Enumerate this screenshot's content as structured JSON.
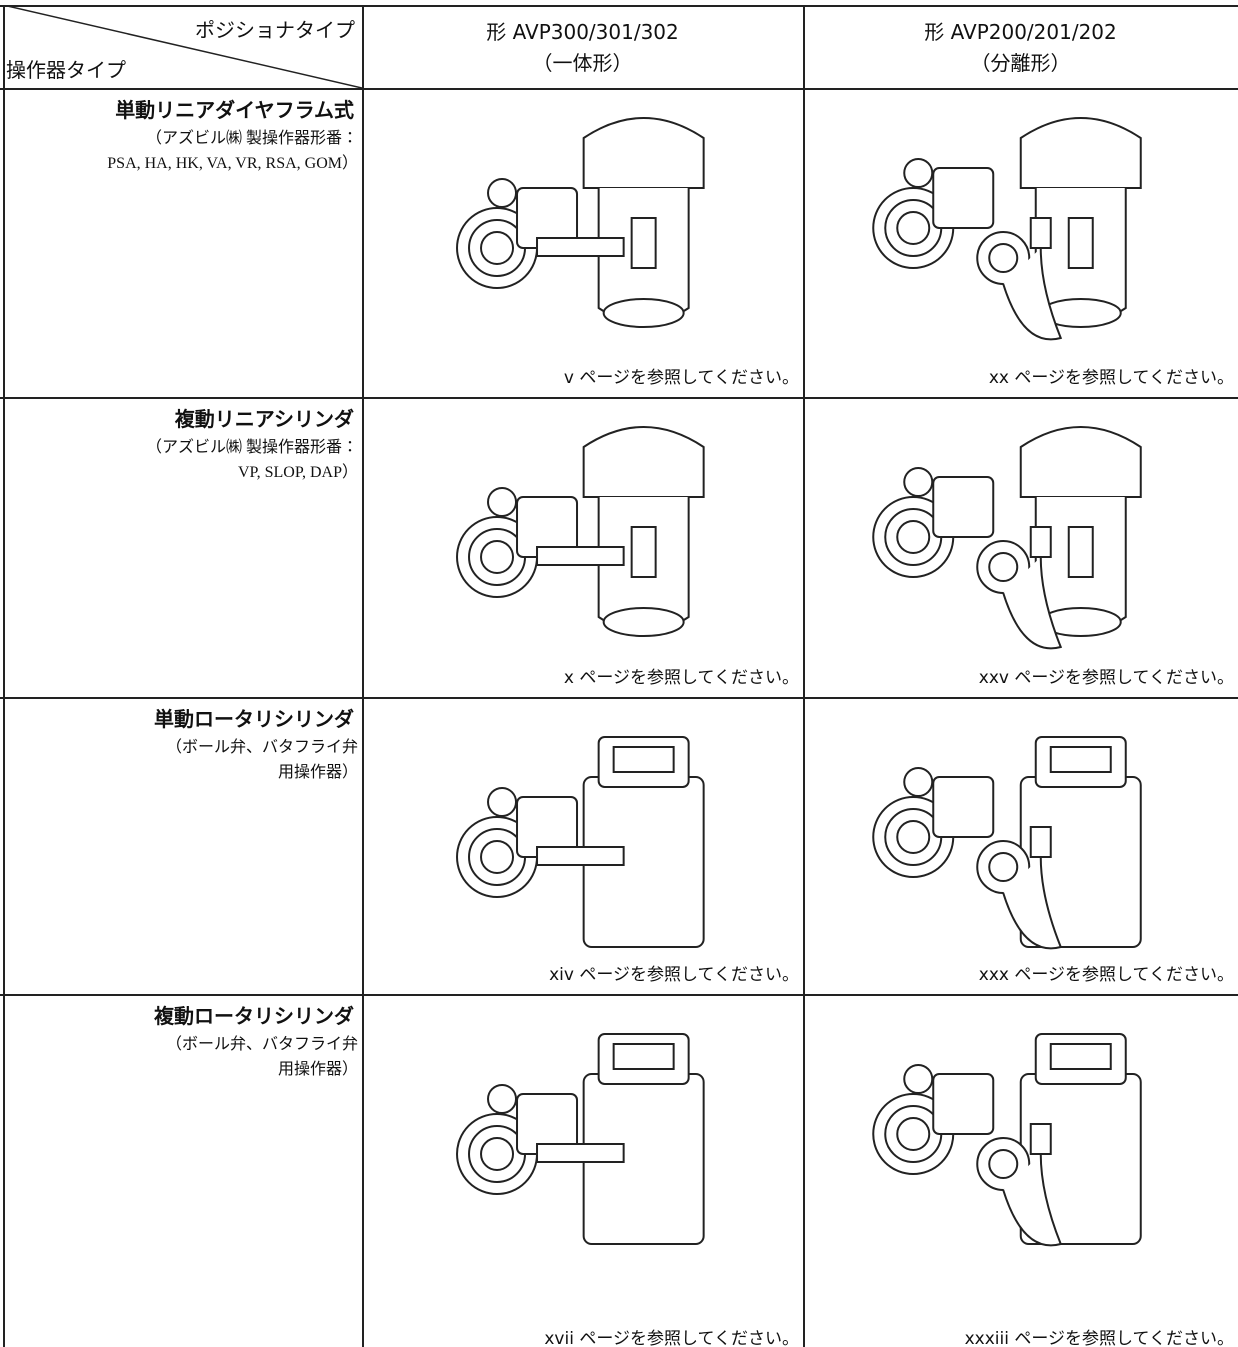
{
  "header": {
    "diagonal": {
      "top": "ポジショナタイプ",
      "bottom": "操作器タイプ"
    },
    "columns": [
      [
        "形 AVP300/301/302",
        "（一体形）"
      ],
      [
        "形 AVP200/201/202",
        "（分離形）"
      ]
    ]
  },
  "rows": [
    {
      "title": "単動リニアダイヤフラム式",
      "notes": [
        "（アズビル㈱ 製操作器形番：",
        "PSA, HA, HK, VA, VR, RSA, GOM）"
      ],
      "refs": [
        "v ページを参照してください。",
        "xx ページを参照してください。"
      ]
    },
    {
      "title": "複動リニアシリンダ",
      "notes": [
        "（アズビル㈱ 製操作器形番：",
        "VP, SLOP, DAP）"
      ],
      "refs": [
        "x ページを参照してください。",
        "xxv ページを参照してください。"
      ]
    },
    {
      "title": "単動ロータリシリンダ",
      "notes": [
        "（ボール弁、バタフライ弁",
        "用操作器）"
      ],
      "refs": [
        "xiv ページを参照してください。",
        "xxx ページを参照してください。"
      ]
    },
    {
      "title": "複動ロータリシリンダ",
      "notes": [
        "（ボール弁、バタフライ弁",
        "用操作器）"
      ],
      "refs": [
        "xvii ページを参照してください。",
        "xxxiii ページを参照してください。"
      ]
    }
  ]
}
